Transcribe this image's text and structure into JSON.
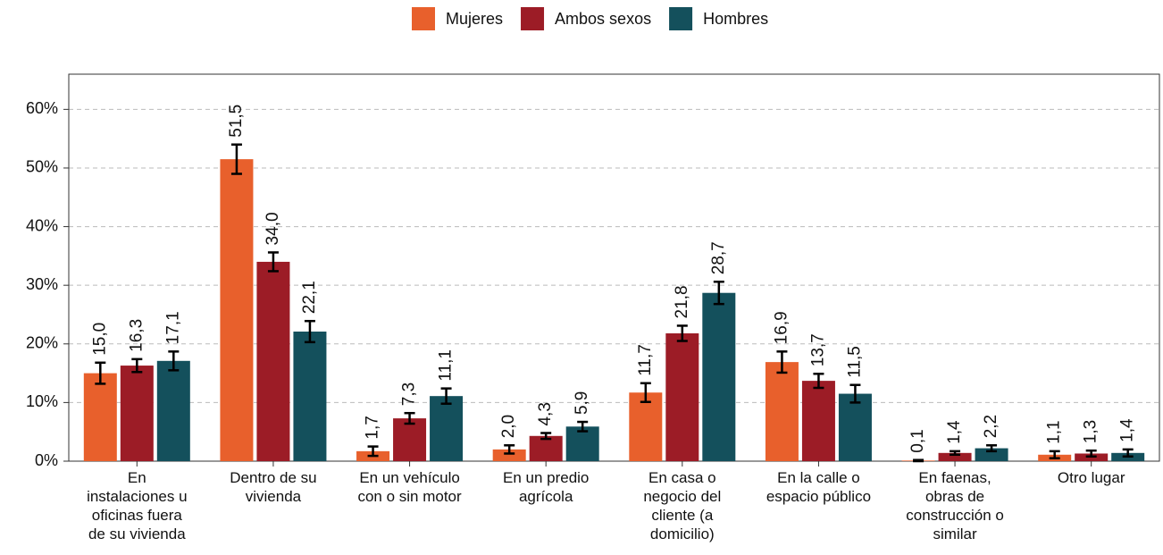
{
  "chart_data": {
    "type": "bar",
    "categories": [
      "En\ninstalaciones u\noficinas fuera\nde su vivienda",
      "Dentro de su\nvivienda",
      "En un vehículo\ncon o sin motor",
      "En un predio\nagrícola",
      "En casa o\nnegocio del\ncliente (a\ndomicilio)",
      "En la calle o\nespacio público",
      "En faenas,\nobras de\nconstrucción o\nsimilar",
      "Otro lugar"
    ],
    "series": [
      {
        "name": "Mujeres",
        "color": "#e8602c",
        "values": [
          15.0,
          51.5,
          1.7,
          2.0,
          11.7,
          16.9,
          0.1,
          1.1
        ],
        "value_labels": [
          "15,0",
          "51,5",
          "1,7",
          "2,0",
          "11,7",
          "16,9",
          "0,1",
          "1,1"
        ],
        "errors": [
          1.8,
          2.5,
          0.8,
          0.7,
          1.6,
          1.8,
          0.1,
          0.6
        ]
      },
      {
        "name": "Ambos sexos",
        "color": "#9c1c26",
        "values": [
          16.3,
          34.0,
          7.3,
          4.3,
          21.8,
          13.7,
          1.4,
          1.3
        ],
        "value_labels": [
          "16,3",
          "34,0",
          "7,3",
          "4,3",
          "21,8",
          "13,7",
          "1,4",
          "1,3"
        ],
        "errors": [
          1.1,
          1.6,
          0.9,
          0.5,
          1.3,
          1.2,
          0.3,
          0.5
        ]
      },
      {
        "name": "Hombres",
        "color": "#14505c",
        "values": [
          17.1,
          22.1,
          11.1,
          5.9,
          28.7,
          11.5,
          2.2,
          1.4
        ],
        "value_labels": [
          "17,1",
          "22,1",
          "11,1",
          "5,9",
          "28,7",
          "11,5",
          "2,2",
          "1,4"
        ],
        "errors": [
          1.6,
          1.8,
          1.3,
          0.8,
          1.9,
          1.5,
          0.5,
          0.6
        ]
      }
    ],
    "ylim": [
      0,
      66
    ],
    "yticks": [
      {
        "value": 0,
        "label": "0%"
      },
      {
        "value": 10,
        "label": "10%"
      },
      {
        "value": 20,
        "label": "20%"
      },
      {
        "value": 30,
        "label": "30%"
      },
      {
        "value": 40,
        "label": "40%"
      },
      {
        "value": 50,
        "label": "50%"
      },
      {
        "value": 60,
        "label": "60%"
      }
    ],
    "grid": true,
    "legend": "top"
  }
}
